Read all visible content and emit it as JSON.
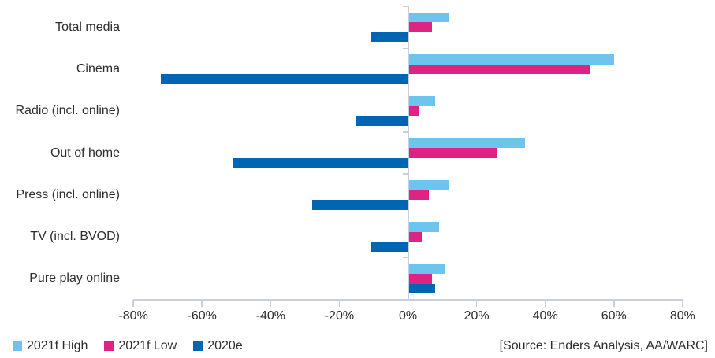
{
  "chart_data": {
    "type": "bar",
    "orientation": "horizontal",
    "title": "",
    "categories": [
      "Total media",
      "Cinema",
      "Radio (incl. online)",
      "Out of home",
      "Press (incl. online)",
      "TV (incl. BVOD)",
      "Pure play online"
    ],
    "series": [
      {
        "name": "2021f High",
        "color": "#6dc5ee",
        "values": [
          12,
          60,
          8,
          34,
          12,
          9,
          11
        ]
      },
      {
        "name": "2021f Low",
        "color": "#de2383",
        "values": [
          7,
          53,
          3,
          26,
          6,
          4,
          7
        ]
      },
      {
        "name": "2020e",
        "color": "#0066b2",
        "values": [
          -11,
          -72,
          -15,
          -51,
          -28,
          -11,
          8
        ]
      }
    ],
    "x_axis": {
      "min": -80,
      "max": 80,
      "step": 20,
      "unit": "%",
      "tick_labels": [
        "-80%",
        "-60%",
        "-40%",
        "-20%",
        "0%",
        "20%",
        "40%",
        "60%",
        "80%"
      ]
    },
    "grid": false,
    "legend_position": "bottom-left"
  },
  "legend": {
    "items": [
      {
        "label": "2021f High",
        "color": "#6dc5ee"
      },
      {
        "label": "2021f Low",
        "color": "#de2383"
      },
      {
        "label": "2020e",
        "color": "#0066b2"
      }
    ]
  },
  "source": "[Source: Enders Analysis, AA/WARC]",
  "colors": {
    "axis": "#c8cedc",
    "text": "#2d2d2d",
    "background": "#ffffff"
  }
}
